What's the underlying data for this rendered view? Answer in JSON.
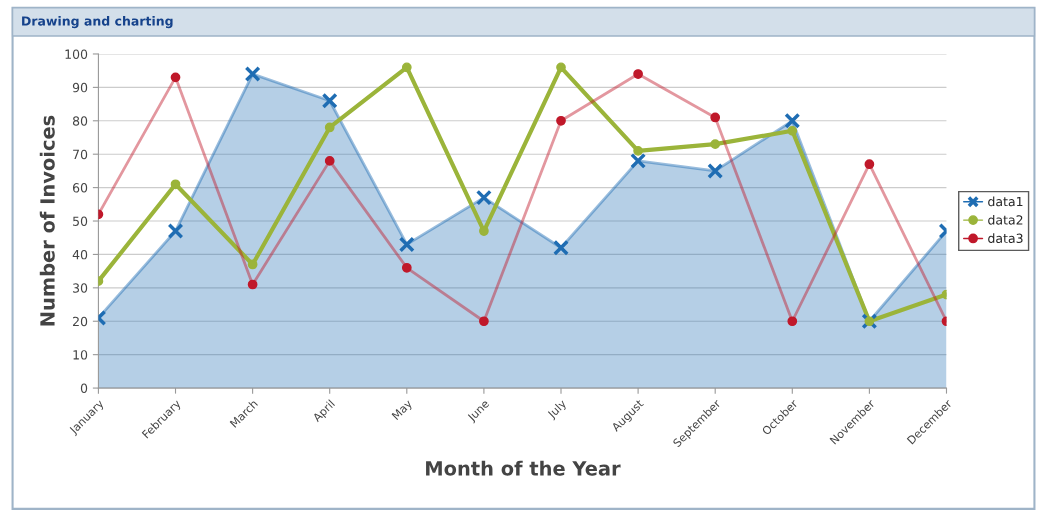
{
  "chart_data": {
    "type": "line",
    "title": "Drawing and charting",
    "xlabel": "Month of the Year",
    "ylabel": "Number of Invoices",
    "categories": [
      "January",
      "February",
      "March",
      "April",
      "May",
      "June",
      "July",
      "August",
      "September",
      "October",
      "November",
      "December"
    ],
    "series": [
      {
        "name": "data1",
        "type": "area",
        "marker": "cross",
        "color": "#1f6db3",
        "values": [
          21,
          47,
          94,
          86,
          43,
          57,
          42,
          68,
          65,
          80,
          20,
          47
        ]
      },
      {
        "name": "data2",
        "marker": "circle",
        "color": "#9bb43a",
        "values": [
          32,
          61,
          37,
          78,
          96,
          47,
          96,
          71,
          73,
          77,
          20,
          28
        ]
      },
      {
        "name": "data3",
        "marker": "circle",
        "color": "#c0182a",
        "values": [
          52,
          93,
          31,
          68,
          36,
          20,
          80,
          94,
          81,
          20,
          67,
          20
        ]
      }
    ],
    "ylim": [
      0,
      100
    ],
    "yticks": [
      0,
      10,
      20,
      30,
      40,
      50,
      60,
      70,
      80,
      90,
      100
    ],
    "grid": "y",
    "legend": "right"
  }
}
